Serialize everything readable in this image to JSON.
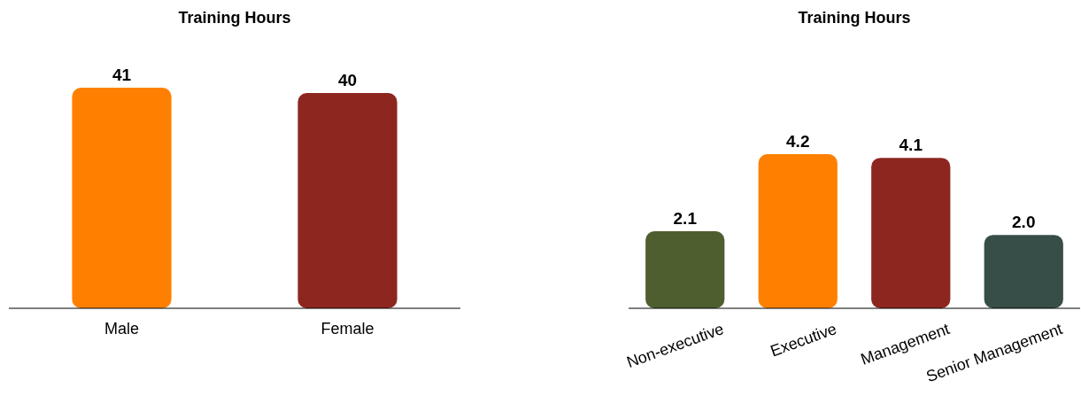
{
  "chart_data": [
    {
      "type": "bar",
      "title": "Training Hours",
      "categories": [
        "Male",
        "Female"
      ],
      "values": [
        41,
        40
      ],
      "colors": [
        "#ff8000",
        "#8e2620"
      ],
      "data_labels": true
    },
    {
      "type": "bar",
      "title": "Training Hours",
      "categories": [
        "Non-executive",
        "Executive",
        "Management",
        "Senior Management"
      ],
      "values": [
        2.1,
        4.2,
        4.1,
        2.0
      ],
      "colors": [
        "#4f5e2f",
        "#ff8000",
        "#8e2620",
        "#374d48"
      ],
      "data_labels": true,
      "value_labels": [
        "2.1",
        "4.2",
        "4.1",
        "2.0"
      ]
    }
  ]
}
